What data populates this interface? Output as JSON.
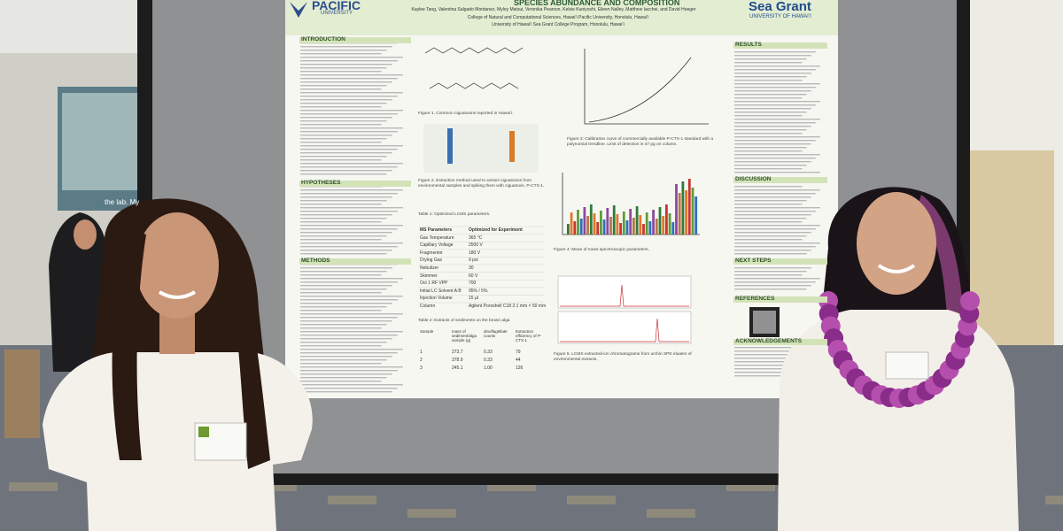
{
  "poster": {
    "logo_left": "PACIFIC",
    "logo_left_sub": "UNIVERSITY",
    "title": "SPECIES ABUNDANCE AND COMPOSITION",
    "authors": "Kaylee Tang, Valentina Salgado Montanez, Myloy Matsui, Veronika Pearson, Kelsie Kuniyoshi, Eileen Nalley, Matthew Iacchei, and David Hoeger",
    "affiliations": [
      "College of Natural and Computational Sciences, Hawaiʻi Pacific University, Honolulu, Hawaiʻi",
      "University of Hawaiʻi Sea Grant College Program, Honolulu, Hawaiʻi"
    ],
    "logo_right": "Sea Grant",
    "logo_right_sub": "UNIVERSITY OF HAWAIʻI",
    "sections": [
      "INTRODUCTION",
      "HYPOTHESES",
      "METHODS",
      "RESULTS",
      "DISCUSSION",
      "NEXT STEPS",
      "REFERENCES",
      "ACKNOWLEDGEMENTS"
    ],
    "figures": [
      "Figure 1. Common ciguatoxins reported in Hawaiʻi.",
      "Figure 2. Extraction method used to extract ciguatoxins from environmental samples and spiking them with ciguatoxin, P-CTX-1.",
      "Figure 3: Calibration curve of commercially available P-CTX-1 standard with a polynomial trendline. Limit of detection is 47 pg on column.",
      "Figure 4: Mean of mass spectroscopic parameters.",
      "Figure 5. LCMS extracted-ion chromatograms from urchin SPE eluates of environmental extracts."
    ],
    "table1": {
      "title": "Table 1: Optimized LCMS parameters.",
      "rows": [
        [
          "MS Parameters",
          "Optimized for Experiment"
        ],
        [
          "Gas Temperature",
          "365 °C"
        ],
        [
          "Capillary Voltage",
          "2500 V"
        ],
        [
          "Fragmentor",
          "180 V"
        ],
        [
          "Drying Gas",
          "9 psi"
        ],
        [
          "Nebulizer",
          "30"
        ],
        [
          "Skimmer",
          "60 V"
        ],
        [
          "Oct 1 RF VPP",
          "700"
        ],
        [
          "Initial LC Solvent A:B",
          "95% / 5%"
        ],
        [
          "Injection Volume",
          "15 µl"
        ],
        [
          "Column",
          "Agilent Poroshell C18 2.1 mm × 50 mm"
        ]
      ]
    },
    "table2": {
      "title": "Table 2: Extracts of sediments on the brown alga",
      "rows": [
        [
          "Sample",
          "mass of sediment/alga sample (g)",
          "dinoflagellate counts",
          "Extraction efficiency of P-CTX-1"
        ],
        [
          "1",
          "273.7",
          "0.33",
          "79"
        ],
        [
          "2",
          "378.9",
          "0.33",
          "44"
        ],
        [
          "3",
          "245.1",
          "1.00",
          "126"
        ]
      ]
    }
  },
  "background": {
    "screen_text": "the lab. My"
  }
}
